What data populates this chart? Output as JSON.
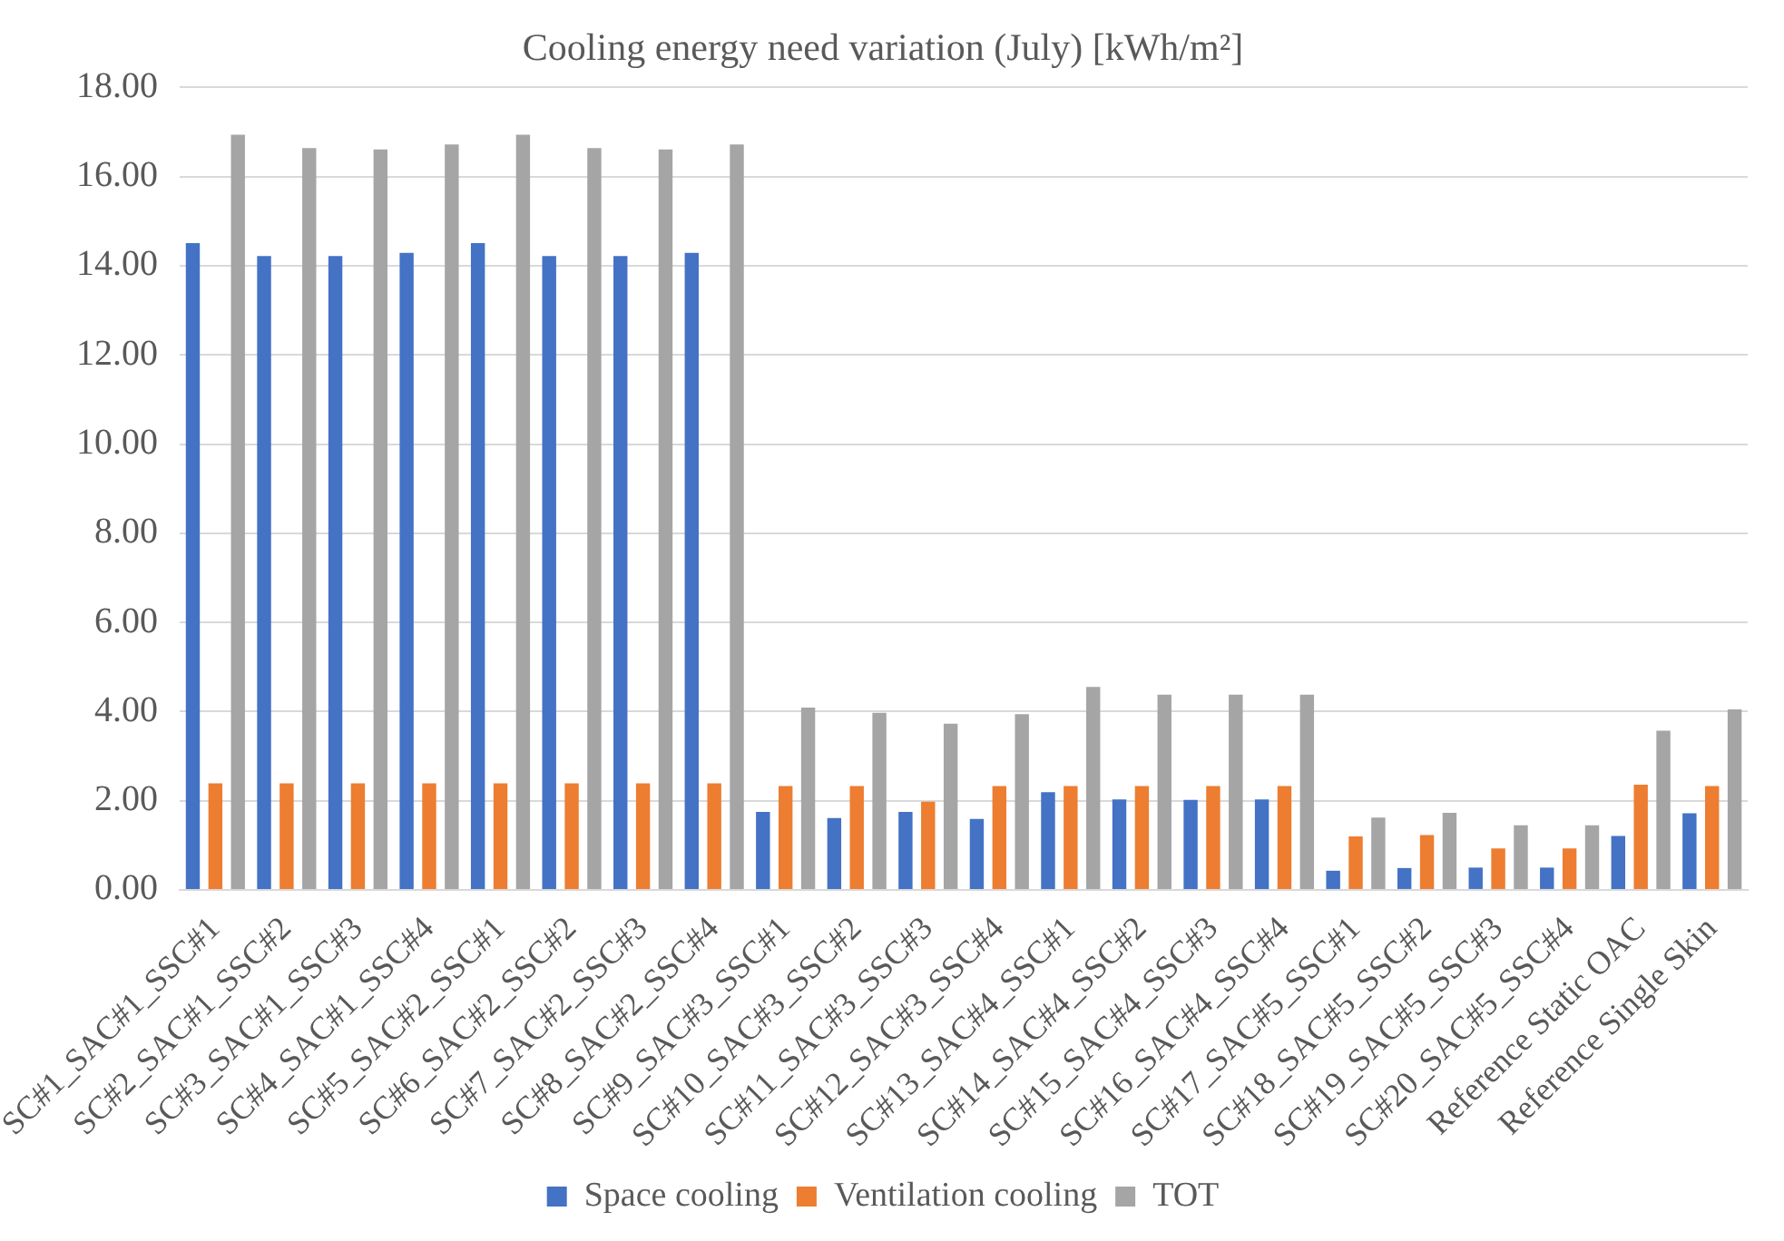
{
  "chart_data": {
    "type": "bar",
    "title": "Cooling energy need variation (July) [kWh/m²]",
    "categories": [
      "SC#1_SAC#1_SSC#1",
      "SC#2_SAC#1_SSC#2",
      "SC#3_SAC#1_SSC#3",
      "SC#4_SAC#1_SSC#4",
      "SC#5_SAC#2_SSC#1",
      "SC#6_SAC#2_SSC#2",
      "SC#7_SAC#2_SSC#3",
      "SC#8_SAC#2_SSC#4",
      "SC#9_SAC#3_SSC#1",
      "SC#10_SAC#3_SSC#2",
      "SC#11_SAC#3_SSC#3",
      "SC#12_SAC#3_SSC#4",
      "SC#13_SAC#4_SSC#1",
      "SC#14_SAC#4_SSC#2",
      "SC#15_SAC#4_SSC#3",
      "SC#16_SAC#4_SSC#4",
      "SC#17_SAC#5_SSC#1",
      "SC#18_SAC#5_SSC#2",
      "SC#19_SAC#5_SSC#3",
      "SC#20_SAC#5_SSC#4",
      "Reference Static OAC",
      "Reference Single Skin"
    ],
    "series": [
      {
        "name": "Space cooling",
        "color": "#4472c4",
        "values": [
          14.51,
          14.22,
          14.22,
          14.29,
          14.51,
          14.22,
          14.22,
          14.29,
          1.75,
          1.61,
          1.75,
          1.59,
          2.19,
          2.03,
          2.02,
          2.03,
          0.43,
          0.49,
          0.5,
          0.5,
          1.21,
          1.72
        ]
      },
      {
        "name": "Ventilation cooling",
        "color": "#ed7d31",
        "values": [
          2.39,
          2.39,
          2.39,
          2.39,
          2.39,
          2.39,
          2.39,
          2.39,
          2.33,
          2.33,
          1.98,
          2.33,
          2.33,
          2.33,
          2.33,
          2.33,
          1.2,
          1.23,
          0.93,
          0.93,
          2.36,
          2.33
        ]
      },
      {
        "name": "TOT",
        "color": "#a5a5a5",
        "values": [
          16.94,
          16.64,
          16.61,
          16.72,
          16.94,
          16.64,
          16.61,
          16.72,
          4.09,
          3.97,
          3.73,
          3.94,
          4.55,
          4.38,
          4.38,
          4.38,
          1.62,
          1.73,
          1.45,
          1.45,
          3.57,
          4.05
        ]
      }
    ],
    "ylim": [
      0,
      18
    ],
    "yticks": [
      {
        "value": 0,
        "label": "0.00"
      },
      {
        "value": 2,
        "label": "2.00"
      },
      {
        "value": 4,
        "label": "4.00"
      },
      {
        "value": 6,
        "label": "6.00"
      },
      {
        "value": 8,
        "label": "8.00"
      },
      {
        "value": 10,
        "label": "10.00"
      },
      {
        "value": 12,
        "label": "12.00"
      },
      {
        "value": 14,
        "label": "14.00"
      },
      {
        "value": 16,
        "label": "16.00"
      },
      {
        "value": 18,
        "label": "18.00"
      }
    ],
    "grid": "y",
    "legend": "bottom"
  }
}
